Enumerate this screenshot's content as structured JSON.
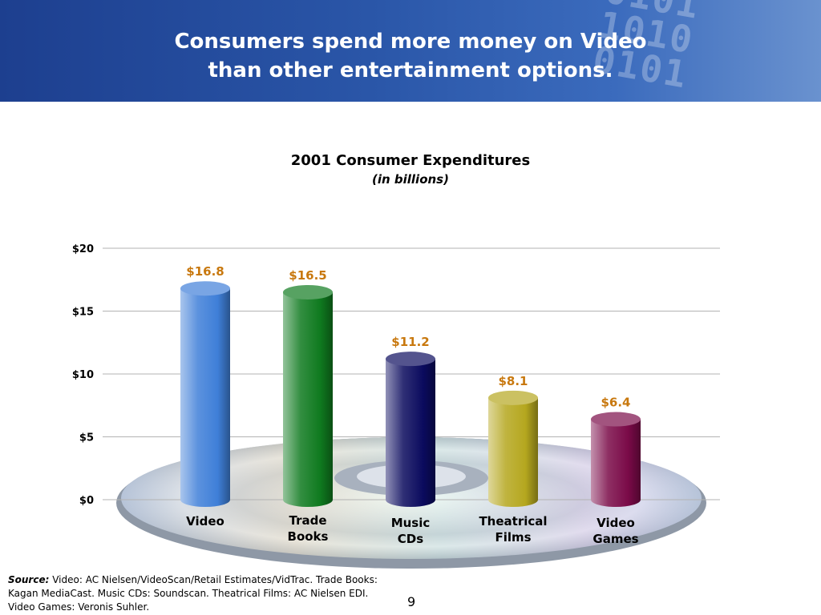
{
  "slide": {
    "title_line1": "Consumers spend more money on Video",
    "title_line2": "than other entertainment options.",
    "page_number": "9"
  },
  "chart_data": {
    "type": "bar",
    "title": "2001 Consumer Expenditures",
    "subtitle": "(in billions)",
    "categories": [
      "Video",
      "Trade Books",
      "Music CDs",
      "Theatrical Films",
      "Video Games"
    ],
    "category_lines": [
      [
        "Video"
      ],
      [
        "Trade",
        "Books"
      ],
      [
        "Music",
        "CDs"
      ],
      [
        "Theatrical",
        "Films"
      ],
      [
        "Video",
        "Games"
      ]
    ],
    "values": [
      16.8,
      16.5,
      11.2,
      8.1,
      6.4
    ],
    "value_labels": [
      "$16.8",
      "$16.5",
      "$11.2",
      "$8.1",
      "$6.4"
    ],
    "yticks": [
      0,
      5,
      10,
      15,
      20
    ],
    "ytick_labels": [
      "$0",
      "$5",
      "$10",
      "$15",
      "$20"
    ],
    "ylim": [
      0,
      20
    ],
    "grid": true,
    "colors": [
      "#3f7fd8",
      "#0f7a1f",
      "#0b0b5e",
      "#b5a71e",
      "#7a0a48"
    ],
    "value_label_color": "#c8780e"
  },
  "source": {
    "label": "Source:",
    "text": " Video: AC Nielsen/VideoScan/Retail Estimates/VidTrac. Trade Books: Kagan MediaCast. Music CDs: Soundscan. Theatrical Films: AC Nielsen EDI. Video Games: Veronis Suhler."
  }
}
